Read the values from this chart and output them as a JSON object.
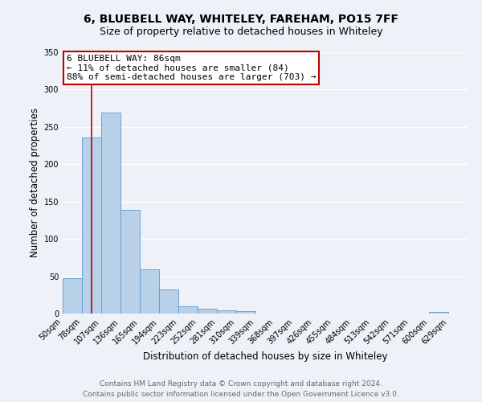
{
  "title": "6, BLUEBELL WAY, WHITELEY, FAREHAM, PO15 7FF",
  "subtitle": "Size of property relative to detached houses in Whiteley",
  "xlabel": "Distribution of detached houses by size in Whiteley",
  "ylabel": "Number of detached properties",
  "bin_labels": [
    "50sqm",
    "78sqm",
    "107sqm",
    "136sqm",
    "165sqm",
    "194sqm",
    "223sqm",
    "252sqm",
    "281sqm",
    "310sqm",
    "339sqm",
    "368sqm",
    "397sqm",
    "426sqm",
    "455sqm",
    "484sqm",
    "513sqm",
    "542sqm",
    "571sqm",
    "600sqm",
    "629sqm"
  ],
  "bar_heights": [
    47,
    236,
    269,
    139,
    59,
    32,
    10,
    6,
    4,
    3,
    0,
    0,
    0,
    0,
    0,
    0,
    0,
    0,
    0,
    2,
    0
  ],
  "bar_color": "#b8d0e8",
  "bar_edge_color": "#5b9bd5",
  "vline_x": 1.5,
  "vline_color": "#c00000",
  "ylim": [
    0,
    350
  ],
  "yticks": [
    0,
    50,
    100,
    150,
    200,
    250,
    300,
    350
  ],
  "annotation_title": "6 BLUEBELL WAY: 86sqm",
  "annotation_line1": "← 11% of detached houses are smaller (84)",
  "annotation_line2": "88% of semi-detached houses are larger (703) →",
  "annotation_box_color": "#ffffff",
  "annotation_box_edge": "#c00000",
  "footer_line1": "Contains HM Land Registry data © Crown copyright and database right 2024.",
  "footer_line2": "Contains public sector information licensed under the Open Government Licence v3.0.",
  "bg_color": "#eef2f8",
  "plot_bg_color": "#eef2f8",
  "grid_color": "#ffffff",
  "title_fontsize": 10,
  "subtitle_fontsize": 9,
  "axis_label_fontsize": 8.5,
  "tick_fontsize": 7,
  "annotation_fontsize": 8,
  "footer_fontsize": 6.5
}
